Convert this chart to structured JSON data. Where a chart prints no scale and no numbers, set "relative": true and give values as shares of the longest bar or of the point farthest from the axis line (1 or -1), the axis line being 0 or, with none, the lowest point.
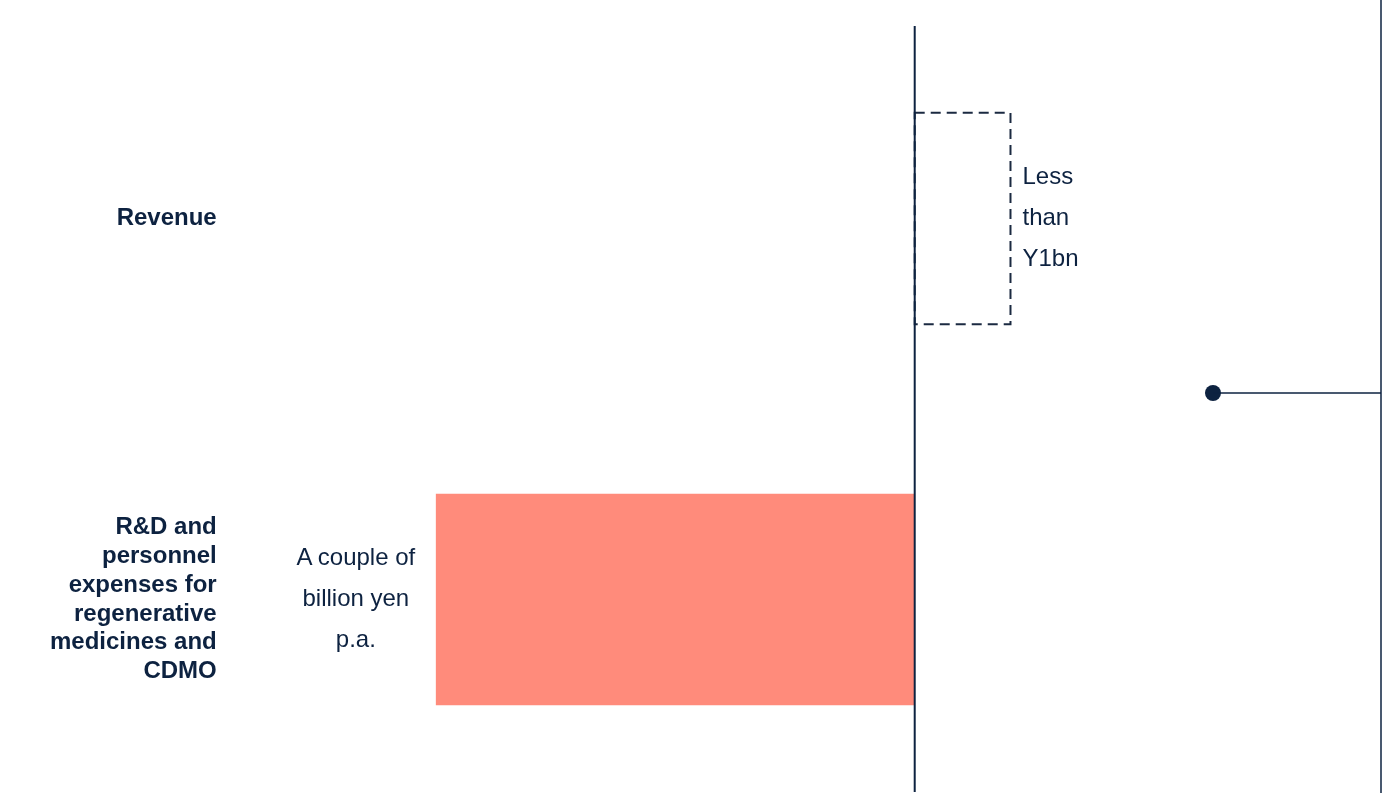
{
  "chart_data": {
    "type": "bar",
    "orientation": "horizontal",
    "relative": true,
    "categories": [
      "Revenue",
      "R&D and personnel expenses for regenerative medicines and CDMO"
    ],
    "series": [
      {
        "color": "#1b2a41",
        "values": [
          0.2,
          null
        ],
        "line_style": "dashed"
      },
      {
        "color": "#ff8b7b",
        "values": [
          null,
          -1
        ]
      }
    ],
    "annotations": [
      {
        "text": "Less than Y1bn",
        "x": 0.2,
        "y": "Revenue"
      },
      {
        "text": "A couple of billion yen p.a.",
        "x": -1,
        "y": "R&D and personnel expenses for regenerative medicines and CDMO"
      }
    ],
    "grid": false,
    "legend": false
  }
}
